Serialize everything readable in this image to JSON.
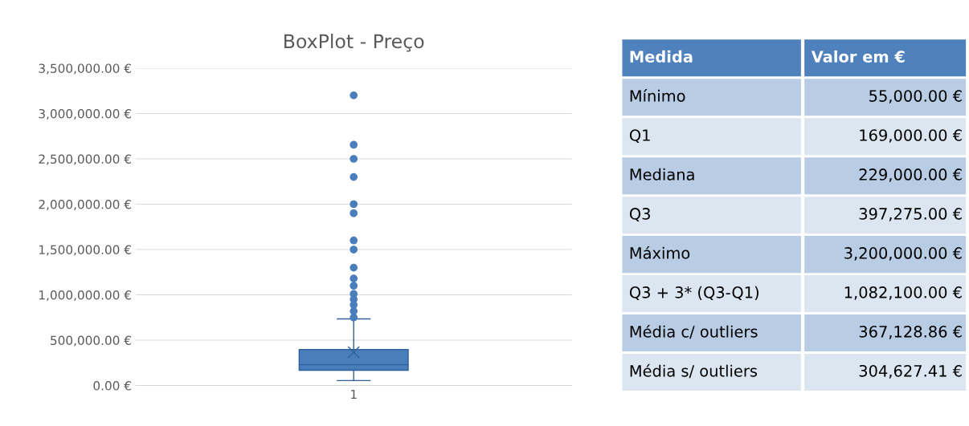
{
  "chart_data": [
    {
      "type": "box",
      "title": "BoxPlot - Preço",
      "categories": [
        "1"
      ],
      "color": "#4a7ebb",
      "grid": "y",
      "marker": "circle",
      "boxes": [
        {
          "low": 55000,
          "q1": 169000,
          "median": 229000,
          "q3": 397275,
          "high": 735000,
          "mean": 367128.86,
          "outliers": [
            750000,
            820000,
            890000,
            950000,
            1010000,
            1100000,
            1180000,
            1300000,
            1500000,
            1600000,
            1900000,
            2000000,
            2300000,
            2500000,
            2655000,
            3200000
          ]
        }
      ],
      "ylim": [
        0,
        3500000
      ],
      "yticks": [
        {
          "value": 0,
          "label": "0.00 €"
        },
        {
          "value": 500000,
          "label": "500,000.00 €"
        },
        {
          "value": 1000000,
          "label": "1,000,000.00 €"
        },
        {
          "value": 1500000,
          "label": "1,500,000.00 €"
        },
        {
          "value": 2000000,
          "label": "2,000,000.00 €"
        },
        {
          "value": 2500000,
          "label": "2,500,000.00 €"
        },
        {
          "value": 3000000,
          "label": "3,000,000.00 €"
        },
        {
          "value": 3500000,
          "label": "3,500,000.00 €"
        }
      ]
    },
    {
      "type": "other",
      "annotations": [
        "Medida",
        "Valor em €",
        "Mínimo",
        "55,000.00 €",
        "Q1",
        "169,000.00 €",
        "Mediana",
        "229,000.00 €",
        "Q3",
        "397,275.00 €",
        "Máximo",
        "3,200,000.00 €",
        "Q3 + 3* (Q3-Q1)",
        "1,082,100.00 €",
        "Média c/ outliers",
        "367,128.86 €",
        "Média s/ outliers",
        "304,627.41 €"
      ]
    }
  ]
}
